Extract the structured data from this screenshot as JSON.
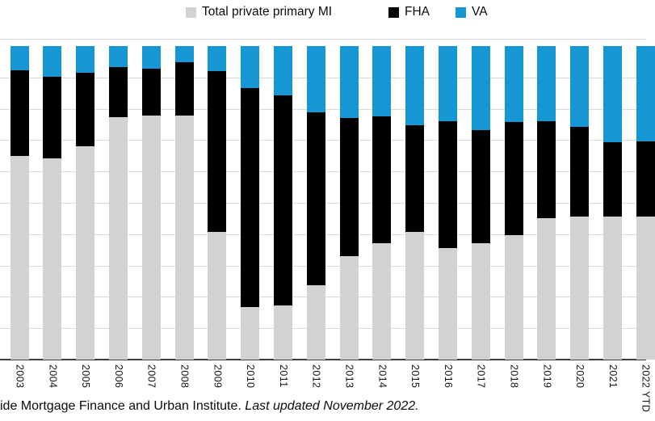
{
  "legend": {
    "items": [
      {
        "label": "Total private primary MI",
        "color": "#d2d2d2"
      },
      {
        "label": "FHA",
        "color": "#000000"
      },
      {
        "label": "VA",
        "color": "#1696d2"
      }
    ]
  },
  "chart_data": {
    "type": "bar",
    "stacked": true,
    "percent_stacked": true,
    "title": "",
    "xlabel": "",
    "ylabel": "",
    "ylim": [
      0,
      100
    ],
    "y_unit": "percent share",
    "grid": "horizontal, 10% steps, y-axis labels cropped off left edge",
    "legend_position": "top",
    "categories": [
      "2003",
      "2004",
      "2005",
      "2006",
      "2007",
      "2008",
      "2009",
      "2010",
      "2011",
      "2012",
      "2013",
      "2014",
      "2015",
      "2016",
      "2017",
      "2018",
      "2019",
      "2020",
      "2021",
      "2022 YTD"
    ],
    "series": [
      {
        "name": "Total private primary MI",
        "color": "#d2d2d2",
        "values": [
          65.0,
          64.3,
          68.0,
          77.3,
          77.8,
          77.9,
          40.6,
          16.8,
          17.3,
          23.6,
          33.1,
          37.2,
          40.6,
          35.6,
          37.2,
          39.7,
          45.1,
          45.7,
          45.5,
          45.6
        ]
      },
      {
        "name": "FHA",
        "color": "#000000",
        "values": [
          27.3,
          25.9,
          23.5,
          15.9,
          15.0,
          17.0,
          51.5,
          69.7,
          66.9,
          55.2,
          44.0,
          40.3,
          34.1,
          40.4,
          36.0,
          36.1,
          30.9,
          28.6,
          23.8,
          24.0
        ]
      },
      {
        "name": "VA",
        "color": "#1696d2",
        "values": [
          7.7,
          9.8,
          8.5,
          6.8,
          7.2,
          5.1,
          7.9,
          13.5,
          15.8,
          21.2,
          22.9,
          22.5,
          25.3,
          24.0,
          26.8,
          24.2,
          24.0,
          25.7,
          30.7,
          30.4
        ]
      }
    ]
  },
  "source_note": {
    "regular": "ide Mortgage Finance and Urban Institute. ",
    "italic": "Last updated November 2022."
  }
}
